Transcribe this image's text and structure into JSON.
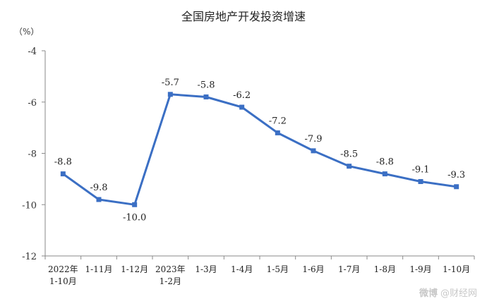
{
  "chart_data": {
    "type": "line",
    "title": "全国房地产开发投资增速",
    "ylabel": "（%）",
    "ylim": [
      -12,
      -4
    ],
    "yticks": [
      -4,
      -6,
      -8,
      -10,
      -12
    ],
    "grid": false,
    "legend": "none",
    "categories": [
      [
        "2022年",
        "1-10月"
      ],
      [
        "1-11月"
      ],
      [
        "1-12月"
      ],
      [
        "2023年",
        "1-2月"
      ],
      [
        "1-3月"
      ],
      [
        "1-4月"
      ],
      [
        "1-5月"
      ],
      [
        "1-6月"
      ],
      [
        "1-7月"
      ],
      [
        "1-8月"
      ],
      [
        "1-9月"
      ],
      [
        "1-10月"
      ]
    ],
    "series": [
      {
        "values": [
          -8.8,
          -9.8,
          -10.0,
          -5.7,
          -5.8,
          -6.2,
          -7.2,
          -7.9,
          -8.5,
          -8.8,
          -9.1,
          -9.3
        ],
        "labels": [
          "-8.8",
          "-9.8",
          "-10.0",
          "-5.7",
          "-5.8",
          "-6.2",
          "-7.2",
          "-7.9",
          "-8.5",
          "-8.8",
          "-9.1",
          "-9.3"
        ],
        "color": "#3b6fc4"
      }
    ],
    "axis_color": "#8a8a8a"
  },
  "watermark": {
    "brand_mark": "微博",
    "text": "@财经网"
  }
}
